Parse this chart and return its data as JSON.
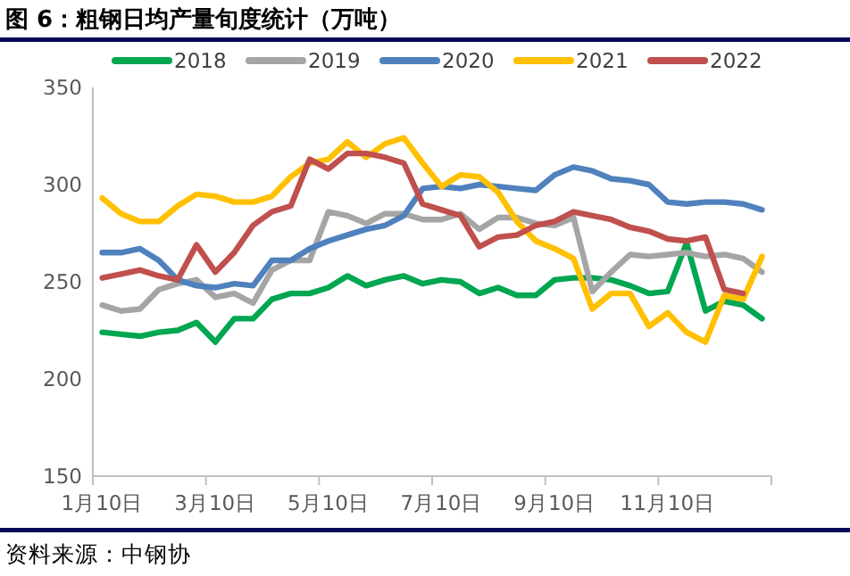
{
  "chart_data": {
    "type": "line",
    "title": "图 6：粗钢日均产量旬度统计（万吨）",
    "categories": [
      "1月10日",
      null,
      null,
      null,
      null,
      null,
      "3月10日",
      null,
      null,
      null,
      null,
      null,
      "5月10日",
      null,
      null,
      null,
      null,
      null,
      "7月10日",
      null,
      null,
      null,
      null,
      null,
      "9月10日",
      null,
      null,
      null,
      null,
      null,
      "11月10日",
      null,
      null,
      null,
      null,
      null
    ],
    "series": [
      {
        "name": "2018",
        "color": "#00a650",
        "values": [
          224,
          223,
          222,
          224,
          225,
          229,
          219,
          231,
          231,
          241,
          244,
          244,
          247,
          253,
          248,
          251,
          253,
          249,
          251,
          250,
          244,
          247,
          243,
          243,
          251,
          252,
          252,
          251,
          248,
          244,
          245,
          270,
          235,
          240,
          238,
          231
        ]
      },
      {
        "name": "2019",
        "color": "#a5a5a5",
        "values": [
          238,
          235,
          236,
          246,
          249,
          251,
          242,
          244,
          239,
          256,
          261,
          261,
          286,
          284,
          280,
          285,
          285,
          282,
          282,
          285,
          277,
          283,
          283,
          280,
          279,
          283,
          245,
          255,
          264,
          263,
          264,
          265,
          263,
          264,
          262,
          255
        ]
      },
      {
        "name": "2020",
        "color": "#4f81bd",
        "values": [
          265,
          265,
          267,
          261,
          251,
          248,
          247,
          249,
          248,
          261,
          261,
          267,
          271,
          274,
          277,
          279,
          284,
          298,
          299,
          298,
          300,
          299,
          298,
          297,
          305,
          309,
          307,
          303,
          302,
          300,
          291,
          290,
          291,
          291,
          290,
          287
        ]
      },
      {
        "name": "2021",
        "color": "#ffc000",
        "values": [
          293,
          285,
          281,
          281,
          289,
          295,
          294,
          291,
          291,
          294,
          304,
          311,
          313,
          322,
          314,
          321,
          324,
          311,
          299,
          305,
          304,
          296,
          281,
          271,
          267,
          262,
          236,
          244,
          244,
          227,
          234,
          224,
          219,
          243,
          241,
          263
        ]
      },
      {
        "name": "2022",
        "color": "#c0504d",
        "values": [
          252,
          254,
          256,
          253,
          251,
          269,
          255,
          265,
          279,
          286,
          289,
          313,
          308,
          316,
          316,
          314,
          311,
          290,
          287,
          284,
          268,
          273,
          274,
          279,
          281,
          286,
          284,
          282,
          278,
          276,
          272,
          271,
          273,
          246,
          244,
          null
        ]
      }
    ],
    "ylim": [
      150,
      350
    ],
    "yticks": [
      150,
      200,
      250,
      300,
      350
    ],
    "legend": "top",
    "grid": false,
    "annotations": [
      "资料来源：中钢协"
    ]
  }
}
